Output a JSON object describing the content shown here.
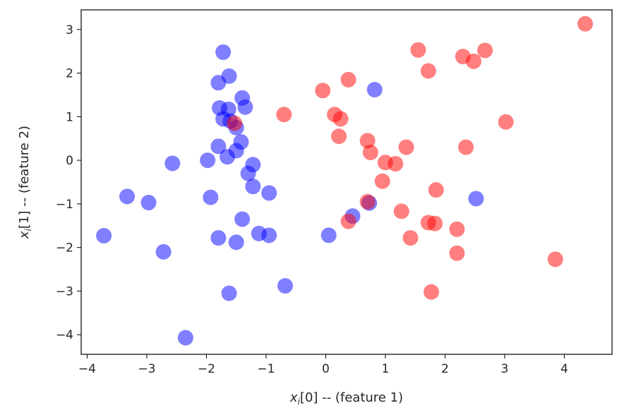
{
  "chart_data": {
    "type": "scatter",
    "title": "",
    "xlabel": {
      "sym": "x",
      "sub": "i",
      "rest": "[0] -- (feature 1)"
    },
    "ylabel": {
      "sym": "x",
      "sub": "i",
      "rest": "[1] -- (feature 2)"
    },
    "xlim": [
      -4.1,
      4.8
    ],
    "ylim": [
      -4.45,
      3.45
    ],
    "x_ticks": [
      -4,
      -3,
      -2,
      -1,
      0,
      1,
      2,
      3,
      4
    ],
    "y_ticks": [
      -4,
      -3,
      -2,
      -1,
      0,
      1,
      2,
      3
    ],
    "grid": false,
    "series": [
      {
        "color": "#0000ff",
        "points": [
          {
            "x": -1.72,
            "y": 2.48
          },
          {
            "x": -1.62,
            "y": 1.93
          },
          {
            "x": -1.8,
            "y": 1.78
          },
          {
            "x": -1.4,
            "y": 1.43
          },
          {
            "x": -1.35,
            "y": 1.22
          },
          {
            "x": -1.78,
            "y": 1.2
          },
          {
            "x": -1.63,
            "y": 1.17
          },
          {
            "x": -1.72,
            "y": 0.95
          },
          {
            "x": -1.6,
            "y": 0.9
          },
          {
            "x": -1.5,
            "y": 0.75
          },
          {
            "x": -1.42,
            "y": 0.42
          },
          {
            "x": -1.8,
            "y": 0.32
          },
          {
            "x": -1.5,
            "y": 0.22
          },
          {
            "x": -1.65,
            "y": 0.08
          },
          {
            "x": -1.98,
            "y": 0.0
          },
          {
            "x": -2.57,
            "y": -0.07
          },
          {
            "x": -1.22,
            "y": -0.1
          },
          {
            "x": -1.3,
            "y": -0.3
          },
          {
            "x": -1.22,
            "y": -0.6
          },
          {
            "x": -0.95,
            "y": -0.75
          },
          {
            "x": -1.93,
            "y": -0.85
          },
          {
            "x": -3.33,
            "y": -0.83
          },
          {
            "x": -2.97,
            "y": -0.97
          },
          {
            "x": -1.4,
            "y": -1.35
          },
          {
            "x": -1.12,
            "y": -1.68
          },
          {
            "x": -0.95,
            "y": -1.72
          },
          {
            "x": -1.8,
            "y": -1.78
          },
          {
            "x": -1.5,
            "y": -1.88
          },
          {
            "x": -3.72,
            "y": -1.73
          },
          {
            "x": -2.72,
            "y": -2.1
          },
          {
            "x": -1.62,
            "y": -3.05
          },
          {
            "x": -0.68,
            "y": -2.88
          },
          {
            "x": -2.35,
            "y": -4.07
          },
          {
            "x": 0.05,
            "y": -1.72
          },
          {
            "x": 0.45,
            "y": -1.28
          },
          {
            "x": 0.73,
            "y": -0.98
          },
          {
            "x": 0.82,
            "y": 1.62
          },
          {
            "x": 2.52,
            "y": -0.88
          }
        ]
      },
      {
        "color": "#ff0000",
        "points": [
          {
            "x": 4.35,
            "y": 3.13
          },
          {
            "x": 1.55,
            "y": 2.53
          },
          {
            "x": 2.67,
            "y": 2.52
          },
          {
            "x": 2.3,
            "y": 2.38
          },
          {
            "x": 2.48,
            "y": 2.27
          },
          {
            "x": 1.72,
            "y": 2.05
          },
          {
            "x": 0.38,
            "y": 1.85
          },
          {
            "x": -0.05,
            "y": 1.6
          },
          {
            "x": -0.7,
            "y": 1.05
          },
          {
            "x": 0.15,
            "y": 1.05
          },
          {
            "x": 0.25,
            "y": 0.95
          },
          {
            "x": -1.53,
            "y": 0.85
          },
          {
            "x": 3.02,
            "y": 0.88
          },
          {
            "x": 0.22,
            "y": 0.55
          },
          {
            "x": 0.7,
            "y": 0.45
          },
          {
            "x": 1.35,
            "y": 0.3
          },
          {
            "x": 2.35,
            "y": 0.3
          },
          {
            "x": 0.75,
            "y": 0.18
          },
          {
            "x": 1.0,
            "y": -0.05
          },
          {
            "x": 1.17,
            "y": -0.08
          },
          {
            "x": 0.95,
            "y": -0.48
          },
          {
            "x": 1.85,
            "y": -0.68
          },
          {
            "x": 0.7,
            "y": -0.95
          },
          {
            "x": 1.27,
            "y": -1.17
          },
          {
            "x": 0.38,
            "y": -1.4
          },
          {
            "x": 1.72,
            "y": -1.43
          },
          {
            "x": 1.83,
            "y": -1.45
          },
          {
            "x": 2.2,
            "y": -1.58
          },
          {
            "x": 1.42,
            "y": -1.78
          },
          {
            "x": 2.2,
            "y": -2.13
          },
          {
            "x": 3.85,
            "y": -2.27
          },
          {
            "x": 1.77,
            "y": -3.02
          }
        ]
      }
    ]
  }
}
